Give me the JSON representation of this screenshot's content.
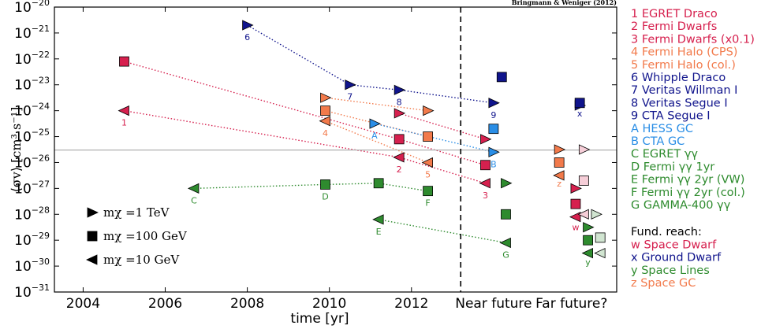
{
  "chart_data": {
    "type": "scatter",
    "title": "",
    "credit": "Bringmann & Weniger (2012)",
    "xlabel": "time [yr]",
    "ylabel": "⟨σv⟩ [cm³ s⁻¹]",
    "ylim_exp": [
      -31,
      -20
    ],
    "log_y": true,
    "x_ticks": [
      "2004",
      "2006",
      "2008",
      "2010",
      "2012",
      "Near future",
      "Far future?"
    ],
    "y_ticks": [
      "10-31",
      "10-30",
      "10-29",
      "10-28",
      "10-27",
      "10-26",
      "10-25",
      "10-24",
      "10-23",
      "10-22",
      "10-21",
      "10-20"
    ],
    "reference_log10": -25.52,
    "divider_label": "2013.2",
    "colors": {
      "red": "#d6204e",
      "orange": "#f27a4b",
      "navy": "#10148c",
      "blue": "#2a8ee6",
      "green": "#2e8b2e",
      "ref": "#b0b0b0"
    },
    "marker_legend": [
      {
        "marker": "triangle-right",
        "text": "mχ =1 TeV"
      },
      {
        "marker": "square",
        "text": "mχ =100 GeV"
      },
      {
        "marker": "triangle-left",
        "text": "mχ =10 GeV"
      }
    ],
    "legend": [
      {
        "text": "1 EGRET Draco",
        "color": "red"
      },
      {
        "text": "2 Fermi Dwarfs",
        "color": "red"
      },
      {
        "text": "3 Fermi Dwarfs (x0.1)",
        "color": "red"
      },
      {
        "text": "4 Fermi Halo (CPS)",
        "color": "orange"
      },
      {
        "text": "5 Fermi Halo (col.)",
        "color": "orange"
      },
      {
        "text": "6 Whipple Draco",
        "color": "navy"
      },
      {
        "text": "7 Veritas Willman I",
        "color": "navy"
      },
      {
        "text": "8 Veritas Segue I",
        "color": "navy"
      },
      {
        "text": "9 CTA Segue I",
        "color": "navy"
      },
      {
        "text": "A HESS GC",
        "color": "blue"
      },
      {
        "text": "B CTA GC",
        "color": "blue"
      },
      {
        "text": "C EGRET γγ",
        "color": "green"
      },
      {
        "text": "D Fermi γγ 1yr",
        "color": "green"
      },
      {
        "text": "E Fermi γγ 2yr (VW)",
        "color": "green"
      },
      {
        "text": "F Fermi γγ 2yr (col.)",
        "color": "green"
      },
      {
        "text": "G GAMMA-400 γγ",
        "color": "green"
      }
    ],
    "fund_title": "Fund. reach:",
    "fund_legend": [
      {
        "text": "w Space Dwarf",
        "color": "red"
      },
      {
        "text": "x Ground Dwarf",
        "color": "navy"
      },
      {
        "text": "y Space Lines",
        "color": "green"
      },
      {
        "text": "z Space GC",
        "color": "orange"
      }
    ],
    "series": [
      {
        "label": "1",
        "color": "red",
        "labelPos": "below",
        "points": [
          {
            "x": 2005.0,
            "y": -24.0,
            "m": "L"
          },
          {
            "x": 2005.0,
            "y": -22.1,
            "m": "S"
          }
        ]
      },
      {
        "label": "2",
        "color": "red",
        "labelPos": "below",
        "points": [
          {
            "x": 2011.7,
            "y": -24.1,
            "m": "R"
          },
          {
            "x": 2011.7,
            "y": -25.1,
            "m": "S"
          },
          {
            "x": 2011.7,
            "y": -25.8,
            "m": "L"
          }
        ]
      },
      {
        "label": "3",
        "color": "red",
        "labelPos": "below",
        "points": [
          {
            "x": 2013.8,
            "y": -25.1,
            "m": "R"
          },
          {
            "x": 2013.8,
            "y": -26.1,
            "m": "S"
          },
          {
            "x": 2013.8,
            "y": -26.8,
            "m": "L"
          }
        ]
      },
      {
        "label": "4",
        "color": "orange",
        "labelPos": "below",
        "points": [
          {
            "x": 2009.9,
            "y": -23.5,
            "m": "R"
          },
          {
            "x": 2009.9,
            "y": -24.0,
            "m": "S"
          },
          {
            "x": 2009.9,
            "y": -24.4,
            "m": "L"
          }
        ]
      },
      {
        "label": "5",
        "color": "orange",
        "labelPos": "below",
        "points": [
          {
            "x": 2012.4,
            "y": -24.0,
            "m": "R"
          },
          {
            "x": 2012.4,
            "y": -25.0,
            "m": "S"
          },
          {
            "x": 2012.4,
            "y": -26.0,
            "m": "L"
          }
        ]
      },
      {
        "label": "6",
        "color": "navy",
        "labelPos": "below",
        "points": [
          {
            "x": 2008.0,
            "y": -20.7,
            "m": "R"
          }
        ]
      },
      {
        "label": "7",
        "color": "navy",
        "labelPos": "below",
        "points": [
          {
            "x": 2010.5,
            "y": -23.0,
            "m": "R"
          }
        ]
      },
      {
        "label": "8",
        "color": "navy",
        "labelPos": "below",
        "points": [
          {
            "x": 2011.7,
            "y": -23.2,
            "m": "R"
          }
        ]
      },
      {
        "label": "9",
        "color": "navy",
        "labelPos": "below",
        "points": [
          {
            "x": 2014.0,
            "y": -23.7,
            "m": "R"
          },
          {
            "x": 2014.2,
            "y": -22.7,
            "m": "S"
          }
        ]
      },
      {
        "label": "A",
        "color": "blue",
        "labelPos": "below",
        "points": [
          {
            "x": 2011.1,
            "y": -24.5,
            "m": "R"
          }
        ]
      },
      {
        "label": "B",
        "color": "blue",
        "labelPos": "below",
        "points": [
          {
            "x": 2014.0,
            "y": -25.6,
            "m": "R"
          },
          {
            "x": 2014.0,
            "y": -24.7,
            "m": "S"
          }
        ]
      },
      {
        "label": "C",
        "color": "green",
        "labelPos": "below",
        "points": [
          {
            "x": 2006.7,
            "y": -27.0,
            "m": "L"
          }
        ]
      },
      {
        "label": "D",
        "color": "green",
        "labelPos": "below",
        "points": [
          {
            "x": 2009.9,
            "y": -26.85,
            "m": "S"
          }
        ]
      },
      {
        "label": "E",
        "color": "green",
        "labelPos": "below",
        "points": [
          {
            "x": 2011.2,
            "y": -26.8,
            "m": "S"
          },
          {
            "x": 2011.2,
            "y": -28.2,
            "m": "L"
          }
        ]
      },
      {
        "label": "F",
        "color": "green",
        "labelPos": "below",
        "points": [
          {
            "x": 2012.4,
            "y": -27.1,
            "m": "S"
          }
        ]
      },
      {
        "label": "G",
        "color": "green",
        "labelPos": "below",
        "points": [
          {
            "x": 2014.3,
            "y": -26.8,
            "m": "R"
          },
          {
            "x": 2014.3,
            "y": -28.0,
            "m": "S"
          },
          {
            "x": 2014.3,
            "y": -29.1,
            "m": "L"
          }
        ]
      }
    ],
    "links": [
      {
        "color": "red",
        "pts": [
          [
            2005.0,
            -24.0
          ],
          [
            2011.7,
            -25.8
          ],
          [
            2013.8,
            -26.8
          ]
        ]
      },
      {
        "color": "red",
        "pts": [
          [
            2005.0,
            -22.1
          ],
          [
            2011.7,
            -25.1
          ],
          [
            2013.8,
            -26.1
          ]
        ]
      },
      {
        "color": "red",
        "pts": [
          [
            2011.7,
            -24.1
          ],
          [
            2013.8,
            -25.1
          ]
        ]
      },
      {
        "color": "orange",
        "pts": [
          [
            2009.9,
            -23.5
          ],
          [
            2012.4,
            -24.0
          ]
        ]
      },
      {
        "color": "orange",
        "pts": [
          [
            2009.9,
            -24.0
          ],
          [
            2012.4,
            -25.0
          ]
        ]
      },
      {
        "color": "orange",
        "pts": [
          [
            2009.9,
            -24.4
          ],
          [
            2012.4,
            -26.0
          ]
        ]
      },
      {
        "color": "navy",
        "pts": [
          [
            2008.0,
            -20.7
          ],
          [
            2010.5,
            -23.0
          ],
          [
            2011.7,
            -23.2
          ],
          [
            2014.0,
            -23.7
          ]
        ]
      },
      {
        "color": "blue",
        "pts": [
          [
            2011.1,
            -24.5
          ],
          [
            2014.0,
            -25.6
          ]
        ]
      },
      {
        "color": "green",
        "pts": [
          [
            2006.7,
            -27.0
          ],
          [
            2009.9,
            -26.85
          ],
          [
            2011.2,
            -26.8
          ],
          [
            2012.4,
            -27.1
          ]
        ]
      },
      {
        "color": "green",
        "pts": [
          [
            2011.2,
            -28.2
          ],
          [
            2014.3,
            -29.1
          ]
        ]
      }
    ],
    "far_future": [
      {
        "x": 2015.6,
        "y": -25.5,
        "m": "R",
        "color": "orange"
      },
      {
        "x": 2015.6,
        "y": -26.0,
        "m": "S",
        "color": "orange"
      },
      {
        "x": 2015.6,
        "y": -26.5,
        "m": "L",
        "color": "orange"
      },
      {
        "x": 2016.2,
        "y": -25.5,
        "m": "R",
        "color": "red",
        "light": true
      },
      {
        "x": 2016.2,
        "y": -26.7,
        "m": "S",
        "color": "red",
        "light": true
      },
      {
        "x": 2016.0,
        "y": -27.0,
        "m": "R",
        "color": "red"
      },
      {
        "x": 2016.0,
        "y": -27.6,
        "m": "S",
        "color": "red"
      },
      {
        "x": 2016.0,
        "y": -28.1,
        "m": "L",
        "color": "red"
      },
      {
        "x": 2016.2,
        "y": -28.0,
        "m": "L",
        "color": "red",
        "light": true
      },
      {
        "x": 2016.1,
        "y": -23.8,
        "m": "R",
        "color": "navy"
      },
      {
        "x": 2016.1,
        "y": -23.7,
        "m": "S",
        "color": "navy"
      },
      {
        "x": 2016.5,
        "y": -28.0,
        "m": "R",
        "color": "green",
        "light": true
      },
      {
        "x": 2016.3,
        "y": -28.5,
        "m": "R",
        "color": "green"
      },
      {
        "x": 2016.3,
        "y": -29.0,
        "m": "S",
        "color": "green"
      },
      {
        "x": 2016.6,
        "y": -28.9,
        "m": "S",
        "color": "green",
        "light": true
      },
      {
        "x": 2016.3,
        "y": -29.5,
        "m": "L",
        "color": "green"
      },
      {
        "x": 2016.6,
        "y": -29.5,
        "m": "L",
        "color": "green",
        "light": true
      }
    ],
    "far_labels": [
      {
        "text": "z",
        "x": 2015.6,
        "y": -26.8,
        "color": "orange"
      },
      {
        "text": "w",
        "x": 2016.0,
        "y": -28.5,
        "color": "red"
      },
      {
        "text": "x",
        "x": 2016.1,
        "y": -24.1,
        "color": "navy"
      },
      {
        "text": "y",
        "x": 2016.3,
        "y": -29.85,
        "color": "green"
      }
    ]
  }
}
